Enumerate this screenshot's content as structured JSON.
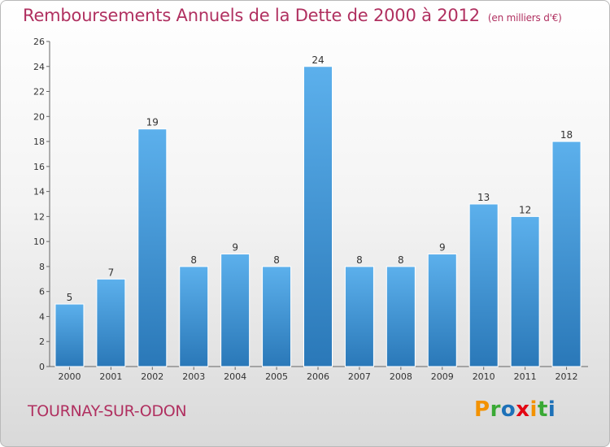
{
  "chart_data": {
    "type": "bar",
    "title": "Remboursements Annuels de la Dette de 2000 à 2012",
    "unit_label": "(en milliers d'€)",
    "categories": [
      "2000",
      "2001",
      "2002",
      "2003",
      "2004",
      "2005",
      "2006",
      "2007",
      "2008",
      "2009",
      "2010",
      "2011",
      "2012"
    ],
    "values": [
      5,
      7,
      19,
      8,
      9,
      8,
      24,
      8,
      8,
      9,
      13,
      12,
      18
    ],
    "ylim": [
      0,
      26
    ],
    "yticks": [
      0,
      2,
      4,
      6,
      8,
      10,
      12,
      14,
      16,
      18,
      20,
      22,
      24,
      26
    ],
    "xlabel": "",
    "ylabel": "",
    "grid": false,
    "bar_color": "#3a8fd6"
  },
  "commune_name": "TOURNAY-SUR-ODON",
  "logo": {
    "letters": [
      "P",
      "r",
      "o",
      "x",
      "i",
      "t",
      "i"
    ],
    "colors": [
      "#f39200",
      "#3aa935",
      "#1d71b8",
      "#e30613",
      "#f39200",
      "#3aa935",
      "#1d71b8"
    ]
  }
}
